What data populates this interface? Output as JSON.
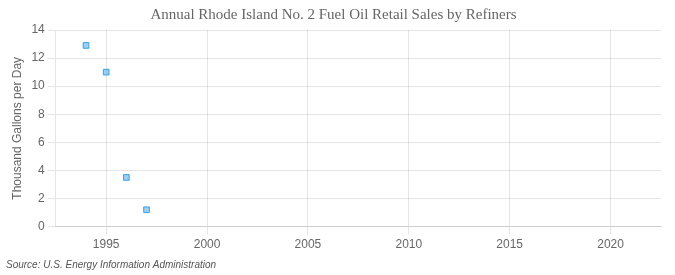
{
  "chart_data": {
    "type": "scatter",
    "title": "Annual Rhode Island No. 2 Fuel Oil Retail Sales by Refiners",
    "ylabel": "Thousand Gallons per Day",
    "annotations": [
      "Source: U.S. Energy Information Administration"
    ],
    "x": [
      1994,
      1995,
      1996,
      1997
    ],
    "values": [
      12.9,
      11.0,
      3.5,
      1.2
    ],
    "marker": "square",
    "xlim": [
      1992.5,
      2022.5
    ],
    "ylim": [
      0,
      14
    ],
    "xticks": [
      1995,
      2000,
      2005,
      2010,
      2015,
      2020
    ],
    "yticks": [
      0,
      2,
      4,
      6,
      8,
      10,
      12,
      14
    ],
    "grid": true
  }
}
